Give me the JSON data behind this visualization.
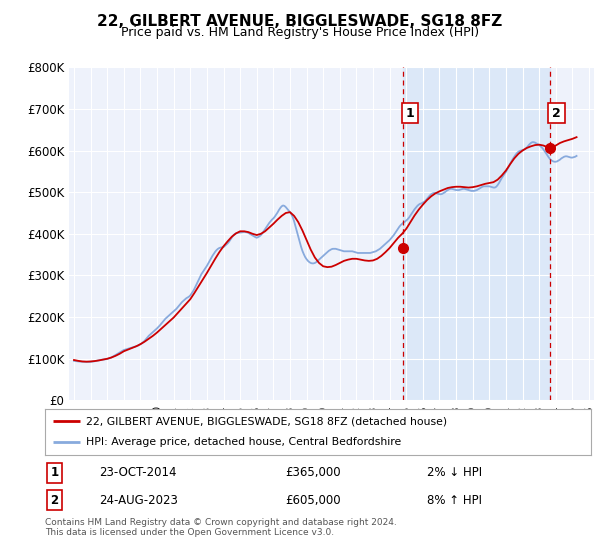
{
  "title": "22, GILBERT AVENUE, BIGGLESWADE, SG18 8FZ",
  "subtitle": "Price paid vs. HM Land Registry's House Price Index (HPI)",
  "line1_label": "22, GILBERT AVENUE, BIGGLESWADE, SG18 8FZ (detached house)",
  "line2_label": "HPI: Average price, detached house, Central Bedfordshire",
  "line1_color": "#cc0000",
  "line2_color": "#88aadd",
  "shade_color": "#dce8f8",
  "background_color": "#ffffff",
  "plot_bg_color": "#eef2fb",
  "ylim": [
    0,
    800000
  ],
  "yticks": [
    0,
    100000,
    200000,
    300000,
    400000,
    500000,
    600000,
    700000,
    800000
  ],
  "ytick_labels": [
    "£0",
    "£100K",
    "£200K",
    "£300K",
    "£400K",
    "£500K",
    "£600K",
    "£700K",
    "£800K"
  ],
  "xlim_start": 1994.7,
  "xlim_end": 2026.3,
  "purchase1_x": 2014.81,
  "purchase1_y": 365000,
  "purchase1_label": "1",
  "purchase1_date": "23-OCT-2014",
  "purchase1_price": "£365,000",
  "purchase1_hpi": "2% ↓ HPI",
  "purchase2_x": 2023.65,
  "purchase2_y": 605000,
  "purchase2_label": "2",
  "purchase2_date": "24-AUG-2023",
  "purchase2_price": "£605,000",
  "purchase2_hpi": "8% ↑ HPI",
  "footnote": "Contains HM Land Registry data © Crown copyright and database right 2024.\nThis data is licensed under the Open Government Licence v3.0.",
  "vline1_x": 2014.81,
  "vline2_x": 2023.65,
  "hpi_data": {
    "t": [
      1995.0,
      1995.083,
      1995.167,
      1995.25,
      1995.333,
      1995.417,
      1995.5,
      1995.583,
      1995.667,
      1995.75,
      1995.833,
      1995.917,
      1996.0,
      1996.083,
      1996.167,
      1996.25,
      1996.333,
      1996.417,
      1996.5,
      1996.583,
      1996.667,
      1996.75,
      1996.833,
      1996.917,
      1997.0,
      1997.083,
      1997.167,
      1997.25,
      1997.333,
      1997.417,
      1997.5,
      1997.583,
      1997.667,
      1997.75,
      1997.833,
      1997.917,
      1998.0,
      1998.083,
      1998.167,
      1998.25,
      1998.333,
      1998.417,
      1998.5,
      1998.583,
      1998.667,
      1998.75,
      1998.833,
      1998.917,
      1999.0,
      1999.083,
      1999.167,
      1999.25,
      1999.333,
      1999.417,
      1999.5,
      1999.583,
      1999.667,
      1999.75,
      1999.833,
      1999.917,
      2000.0,
      2000.083,
      2000.167,
      2000.25,
      2000.333,
      2000.417,
      2000.5,
      2000.583,
      2000.667,
      2000.75,
      2000.833,
      2000.917,
      2001.0,
      2001.083,
      2001.167,
      2001.25,
      2001.333,
      2001.417,
      2001.5,
      2001.583,
      2001.667,
      2001.75,
      2001.833,
      2001.917,
      2002.0,
      2002.083,
      2002.167,
      2002.25,
      2002.333,
      2002.417,
      2002.5,
      2002.583,
      2002.667,
      2002.75,
      2002.833,
      2002.917,
      2003.0,
      2003.083,
      2003.167,
      2003.25,
      2003.333,
      2003.417,
      2003.5,
      2003.583,
      2003.667,
      2003.75,
      2003.833,
      2003.917,
      2004.0,
      2004.083,
      2004.167,
      2004.25,
      2004.333,
      2004.417,
      2004.5,
      2004.583,
      2004.667,
      2004.75,
      2004.833,
      2004.917,
      2005.0,
      2005.083,
      2005.167,
      2005.25,
      2005.333,
      2005.417,
      2005.5,
      2005.583,
      2005.667,
      2005.75,
      2005.833,
      2005.917,
      2006.0,
      2006.083,
      2006.167,
      2006.25,
      2006.333,
      2006.417,
      2006.5,
      2006.583,
      2006.667,
      2006.75,
      2006.833,
      2006.917,
      2007.0,
      2007.083,
      2007.167,
      2007.25,
      2007.333,
      2007.417,
      2007.5,
      2007.583,
      2007.667,
      2007.75,
      2007.833,
      2007.917,
      2008.0,
      2008.083,
      2008.167,
      2008.25,
      2008.333,
      2008.417,
      2008.5,
      2008.583,
      2008.667,
      2008.75,
      2008.833,
      2008.917,
      2009.0,
      2009.083,
      2009.167,
      2009.25,
      2009.333,
      2009.417,
      2009.5,
      2009.583,
      2009.667,
      2009.75,
      2009.833,
      2009.917,
      2010.0,
      2010.083,
      2010.167,
      2010.25,
      2010.333,
      2010.417,
      2010.5,
      2010.583,
      2010.667,
      2010.75,
      2010.833,
      2010.917,
      2011.0,
      2011.083,
      2011.167,
      2011.25,
      2011.333,
      2011.417,
      2011.5,
      2011.583,
      2011.667,
      2011.75,
      2011.833,
      2011.917,
      2012.0,
      2012.083,
      2012.167,
      2012.25,
      2012.333,
      2012.417,
      2012.5,
      2012.583,
      2012.667,
      2012.75,
      2012.833,
      2012.917,
      2013.0,
      2013.083,
      2013.167,
      2013.25,
      2013.333,
      2013.417,
      2013.5,
      2013.583,
      2013.667,
      2013.75,
      2013.833,
      2013.917,
      2014.0,
      2014.083,
      2014.167,
      2014.25,
      2014.333,
      2014.417,
      2014.5,
      2014.583,
      2014.667,
      2014.75,
      2014.833,
      2014.917,
      2015.0,
      2015.083,
      2015.167,
      2015.25,
      2015.333,
      2015.417,
      2015.5,
      2015.583,
      2015.667,
      2015.75,
      2015.833,
      2015.917,
      2016.0,
      2016.083,
      2016.167,
      2016.25,
      2016.333,
      2016.417,
      2016.5,
      2016.583,
      2016.667,
      2016.75,
      2016.833,
      2016.917,
      2017.0,
      2017.083,
      2017.167,
      2017.25,
      2017.333,
      2017.417,
      2017.5,
      2017.583,
      2017.667,
      2017.75,
      2017.833,
      2017.917,
      2018.0,
      2018.083,
      2018.167,
      2018.25,
      2018.333,
      2018.417,
      2018.5,
      2018.583,
      2018.667,
      2018.75,
      2018.833,
      2018.917,
      2019.0,
      2019.083,
      2019.167,
      2019.25,
      2019.333,
      2019.417,
      2019.5,
      2019.583,
      2019.667,
      2019.75,
      2019.833,
      2019.917,
      2020.0,
      2020.083,
      2020.167,
      2020.25,
      2020.333,
      2020.417,
      2020.5,
      2020.583,
      2020.667,
      2020.75,
      2020.833,
      2020.917,
      2021.0,
      2021.083,
      2021.167,
      2021.25,
      2021.333,
      2021.417,
      2021.5,
      2021.583,
      2021.667,
      2021.75,
      2021.833,
      2021.917,
      2022.0,
      2022.083,
      2022.167,
      2022.25,
      2022.333,
      2022.417,
      2022.5,
      2022.583,
      2022.667,
      2022.75,
      2022.833,
      2022.917,
      2023.0,
      2023.083,
      2023.167,
      2023.25,
      2023.333,
      2023.417,
      2023.5,
      2023.583,
      2023.667,
      2023.75,
      2023.833,
      2023.917,
      2024.0,
      2024.083,
      2024.167,
      2024.25,
      2024.333,
      2024.417,
      2024.5,
      2024.583,
      2024.667,
      2024.75,
      2024.833,
      2024.917,
      2025.0,
      2025.083,
      2025.167,
      2025.25
    ],
    "v": [
      95000,
      94500,
      94000,
      93500,
      93200,
      93000,
      92800,
      92600,
      92500,
      92400,
      92300,
      92200,
      92500,
      93000,
      93500,
      94000,
      94800,
      95500,
      96200,
      97000,
      97500,
      98000,
      98500,
      99000,
      99500,
      100500,
      101500,
      103000,
      105000,
      107000,
      109000,
      111000,
      113000,
      115000,
      117000,
      119000,
      121000,
      122000,
      123000,
      124000,
      125000,
      126000,
      127000,
      128000,
      129000,
      130000,
      131000,
      133000,
      135000,
      137000,
      140000,
      143000,
      147000,
      151000,
      155000,
      158000,
      161000,
      164000,
      167000,
      170000,
      173000,
      176500,
      180000,
      184000,
      188000,
      192000,
      196000,
      199000,
      202000,
      205000,
      208000,
      211000,
      214000,
      217000,
      220000,
      224000,
      228000,
      232000,
      236000,
      239000,
      242000,
      245000,
      247000,
      249000,
      252000,
      257000,
      262000,
      268000,
      275000,
      282000,
      289000,
      296000,
      303000,
      308000,
      313000,
      318000,
      323000,
      329000,
      335000,
      341000,
      347000,
      352000,
      357000,
      361000,
      364000,
      366000,
      367000,
      367500,
      368000,
      371000,
      374000,
      377000,
      381000,
      386000,
      391000,
      396000,
      399000,
      401000,
      402000,
      402500,
      403000,
      403500,
      404000,
      404500,
      404000,
      403500,
      402000,
      400000,
      398000,
      396000,
      394000,
      392000,
      390500,
      392000,
      394000,
      397000,
      401000,
      406000,
      411000,
      416000,
      421000,
      426000,
      430000,
      434000,
      437000,
      441000,
      446000,
      451000,
      457000,
      462000,
      466000,
      468000,
      467000,
      464000,
      460000,
      456000,
      452000,
      447000,
      440000,
      430000,
      418000,
      406000,
      393000,
      381000,
      369000,
      359000,
      351000,
      344000,
      339000,
      335000,
      332000,
      330000,
      329000,
      329000,
      330000,
      332000,
      335000,
      338000,
      341000,
      344000,
      347000,
      350000,
      353000,
      356000,
      359000,
      361000,
      363000,
      364000,
      364000,
      364000,
      363000,
      362000,
      361000,
      360000,
      359000,
      358000,
      358000,
      358000,
      358000,
      358000,
      358000,
      358000,
      357000,
      356000,
      355000,
      354000,
      354000,
      354000,
      354000,
      354000,
      354000,
      354000,
      354000,
      354000,
      354000,
      355000,
      356000,
      357000,
      358000,
      360000,
      362000,
      364000,
      367000,
      370000,
      373000,
      376000,
      379000,
      382000,
      385000,
      389000,
      393000,
      397000,
      402000,
      407000,
      412000,
      417000,
      421000,
      424000,
      427000,
      429000,
      432000,
      435000,
      439000,
      444000,
      449000,
      454000,
      459000,
      463000,
      467000,
      470000,
      472000,
      473000,
      475000,
      477000,
      480000,
      484000,
      488000,
      492000,
      495000,
      497000,
      498000,
      498000,
      497000,
      496000,
      495000,
      495000,
      496000,
      498000,
      500000,
      503000,
      505000,
      507000,
      508000,
      508000,
      507000,
      506000,
      505000,
      505000,
      505000,
      506000,
      507000,
      508000,
      508000,
      507000,
      506000,
      505000,
      504000,
      503000,
      503000,
      503000,
      504000,
      505000,
      507000,
      509000,
      511000,
      513000,
      514000,
      514000,
      514000,
      514000,
      514000,
      513000,
      512000,
      511000,
      511000,
      513000,
      517000,
      522000,
      528000,
      534000,
      539000,
      544000,
      549000,
      555000,
      561000,
      568000,
      574000,
      580000,
      585000,
      590000,
      594000,
      597000,
      599000,
      600000,
      601000,
      602000,
      604000,
      607000,
      611000,
      615000,
      618000,
      620000,
      620000,
      619000,
      617000,
      615000,
      613000,
      610000,
      607000,
      603000,
      598000,
      593000,
      588000,
      583000,
      579000,
      576000,
      574000,
      573000,
      573000,
      574000,
      576000,
      578000,
      581000,
      583000,
      585000,
      586000,
      586000,
      585000,
      584000,
      583000,
      583000,
      584000,
      585000,
      587000
    ]
  },
  "prop_data": {
    "t": [
      1995.0,
      1995.25,
      1995.5,
      1995.75,
      1996.0,
      1996.25,
      1996.5,
      1996.75,
      1997.0,
      1997.25,
      1997.5,
      1997.75,
      1998.0,
      1998.25,
      1998.5,
      1998.75,
      1999.0,
      1999.25,
      1999.5,
      1999.75,
      2000.0,
      2000.25,
      2000.5,
      2000.75,
      2001.0,
      2001.25,
      2001.5,
      2001.75,
      2002.0,
      2002.25,
      2002.5,
      2002.75,
      2003.0,
      2003.25,
      2003.5,
      2003.75,
      2004.0,
      2004.25,
      2004.5,
      2004.75,
      2005.0,
      2005.25,
      2005.5,
      2005.75,
      2006.0,
      2006.25,
      2006.5,
      2006.75,
      2007.0,
      2007.25,
      2007.5,
      2007.75,
      2008.0,
      2008.25,
      2008.5,
      2008.75,
      2009.0,
      2009.25,
      2009.5,
      2009.75,
      2010.0,
      2010.25,
      2010.5,
      2010.75,
      2011.0,
      2011.25,
      2011.5,
      2011.75,
      2012.0,
      2012.25,
      2012.5,
      2012.75,
      2013.0,
      2013.25,
      2013.5,
      2013.75,
      2014.0,
      2014.25,
      2014.5,
      2014.75,
      2015.0,
      2015.25,
      2015.5,
      2015.75,
      2016.0,
      2016.25,
      2016.5,
      2016.75,
      2017.0,
      2017.25,
      2017.5,
      2017.75,
      2018.0,
      2018.25,
      2018.5,
      2018.75,
      2019.0,
      2019.25,
      2019.5,
      2019.75,
      2020.0,
      2020.25,
      2020.5,
      2020.75,
      2021.0,
      2021.25,
      2021.5,
      2021.75,
      2022.0,
      2022.25,
      2022.5,
      2022.75,
      2023.0,
      2023.25,
      2023.5,
      2023.75,
      2024.0,
      2024.25,
      2024.5,
      2024.75,
      2025.0,
      2025.25
    ],
    "v": [
      97000,
      95000,
      93500,
      93000,
      93500,
      94500,
      96000,
      98000,
      100000,
      103000,
      107000,
      112000,
      118000,
      122000,
      126000,
      130000,
      135000,
      141000,
      148000,
      155000,
      163000,
      172000,
      181000,
      190000,
      199000,
      210000,
      221000,
      232000,
      243000,
      258000,
      274000,
      290000,
      306000,
      323000,
      340000,
      356000,
      370000,
      382000,
      393000,
      401000,
      406000,
      406000,
      404000,
      400000,
      397000,
      400000,
      406000,
      415000,
      424000,
      434000,
      443000,
      450000,
      452000,
      443000,
      428000,
      408000,
      385000,
      362000,
      343000,
      330000,
      322000,
      320000,
      321000,
      325000,
      330000,
      335000,
      338000,
      340000,
      340000,
      338000,
      336000,
      335000,
      336000,
      340000,
      347000,
      356000,
      366000,
      378000,
      390000,
      400000,
      412000,
      428000,
      444000,
      458000,
      470000,
      481000,
      490000,
      497000,
      502000,
      506000,
      510000,
      512000,
      513000,
      513000,
      512000,
      511000,
      512000,
      514000,
      517000,
      520000,
      522000,
      524000,
      530000,
      540000,
      552000,
      567000,
      581000,
      592000,
      600000,
      606000,
      610000,
      613000,
      614000,
      612000,
      608000,
      605000,
      612000,
      618000,
      622000,
      625000,
      628000,
      632000
    ]
  }
}
